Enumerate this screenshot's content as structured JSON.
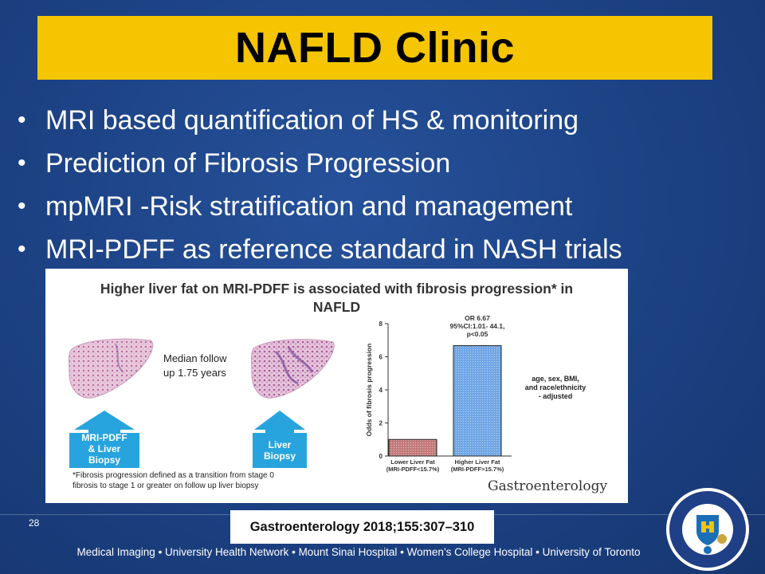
{
  "slide": {
    "title": "NAFLD Clinic",
    "bullets": [
      "MRI based quantification of HS & monitoring",
      "Prediction of Fibrosis Progression",
      "mpMRI -Risk stratification and management",
      "MRI-PDFF as reference standard in NASH trials"
    ],
    "page_number": "28",
    "citation": "Gastroenterology 2018;155:307–310",
    "footer": "Medical Imaging • University Health Network • Mount Sinai Hospital • Women’s College Hospital • University of Toronto",
    "colors": {
      "background": "#1c4183",
      "title_bar": "#f4c500",
      "bullet_text": "#ffffff"
    }
  },
  "figure": {
    "title_line1": "Higher liver fat on MRI-PDFF is associated with fibrosis progression* in",
    "title_line2": "NAFLD",
    "follow_up": [
      "Median follow",
      "up 1.75 years"
    ],
    "box_left": [
      "MRI-PDFF",
      "& Liver",
      "Biopsy"
    ],
    "box_right": [
      "Liver",
      "Biopsy"
    ],
    "footnote": [
      "*Fibrosis progression defined as a transition from stage 0",
      "fibrosis to stage 1 or greater on follow up liver biopsy"
    ],
    "adjust_note": [
      "age, sex, BMI,",
      "and race/ethnicity",
      "- adjusted"
    ],
    "journal_mark": "Gastroenterology",
    "seal_icon": "university-seal-icon"
  },
  "chart_data": {
    "type": "bar",
    "categories": [
      [
        "Lower Liver Fat",
        "(MRI-PDFF<15.7%)"
      ],
      [
        "Higher Liver Fat",
        "(MRI-PDFF>15.7%)"
      ]
    ],
    "values": [
      1,
      6.67
    ],
    "colors": [
      "#c47a7a",
      "#6fa6e6"
    ],
    "ylabel": "Odds of fibrosis progression",
    "ylim": [
      0,
      8
    ],
    "yticks": [
      "0",
      "2",
      "4",
      "6",
      "8"
    ],
    "annotation": [
      "OR 6.67",
      "95%CI:1.01- 44.1,",
      "p<0.05"
    ]
  }
}
